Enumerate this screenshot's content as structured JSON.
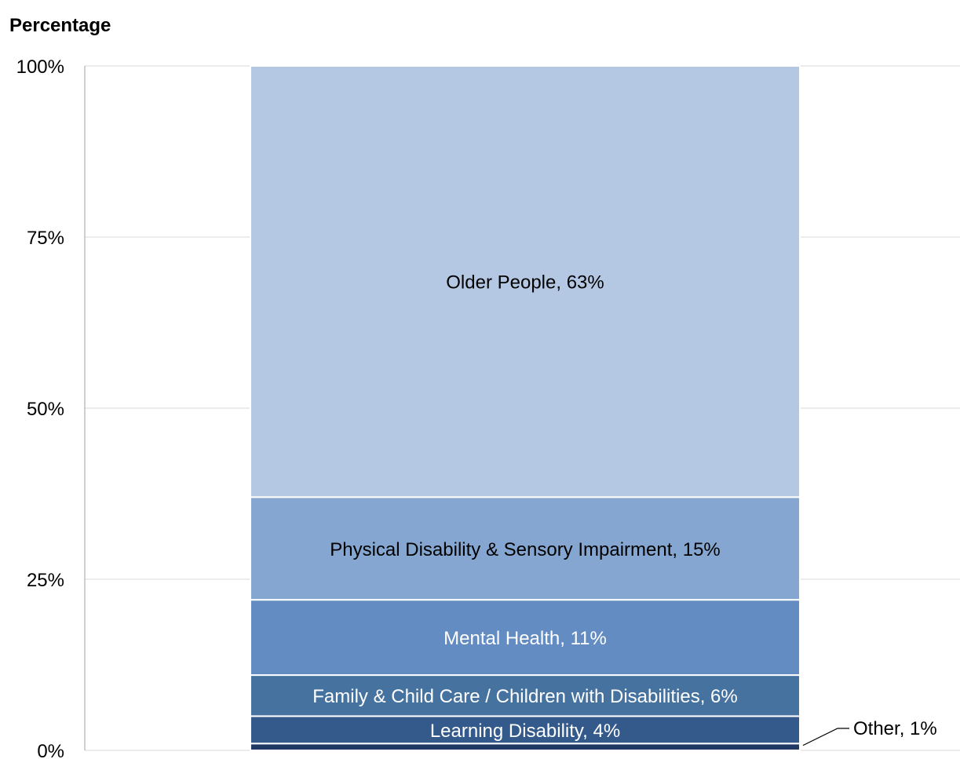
{
  "chart_data": {
    "type": "bar",
    "stacked": true,
    "ylabel": "Percentage",
    "ylim": [
      0,
      100
    ],
    "y_ticks": [
      0,
      25,
      50,
      75,
      100
    ],
    "y_tick_labels": [
      "0%",
      "25%",
      "50%",
      "75%",
      "100%"
    ],
    "grid": true,
    "segments": [
      {
        "name": "Other",
        "value": 1,
        "label": "Other, 1%",
        "color": "#1f3864",
        "text_color": "#000000",
        "callout": true
      },
      {
        "name": "Learning Disability",
        "value": 4,
        "label": "Learning Disability, 4%",
        "color": "#335a8a",
        "text_color": "#ffffff"
      },
      {
        "name": "Family & Child Care / Children with Disabilities",
        "value": 6,
        "label": "Family & Child Care / Children with Disabilities, 6%",
        "color": "#46729f",
        "text_color": "#ffffff"
      },
      {
        "name": "Mental Health",
        "value": 11,
        "label": "Mental Health, 11%",
        "color": "#628cc2",
        "text_color": "#ffffff"
      },
      {
        "name": "Physical Disability & Sensory Impairment",
        "value": 15,
        "label": "Physical Disability & Sensory Impairment, 15%",
        "color": "#84a6d0",
        "text_color": "#000000"
      },
      {
        "name": "Older People",
        "value": 63,
        "label": "Older People, 63%",
        "color": "#b4c8e3",
        "text_color": "#000000"
      }
    ]
  }
}
